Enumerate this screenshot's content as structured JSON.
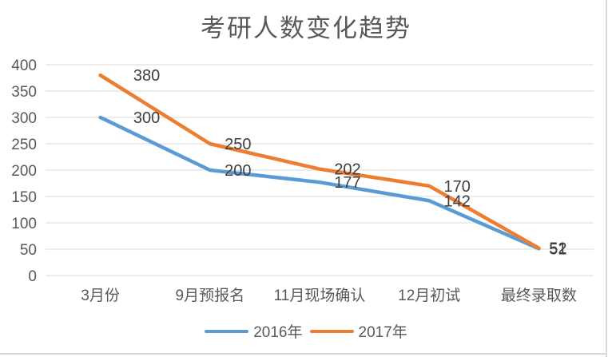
{
  "chart_data": {
    "type": "line",
    "title": "考研人数变化趋势",
    "categories": [
      "3月份",
      "9月预报名",
      "11月现场确认",
      "12月初试",
      "最终录取数"
    ],
    "series": [
      {
        "name": "2016年",
        "color": "#5B9BD5",
        "values": [
          300,
          200,
          177,
          142,
          51
        ]
      },
      {
        "name": "2017年",
        "color": "#ED7D31",
        "values": [
          380,
          250,
          202,
          170,
          52
        ]
      }
    ],
    "y_axis": {
      "min": 0,
      "max": 400,
      "step": 50,
      "ticks": [
        400,
        350,
        300,
        250,
        200,
        150,
        100,
        50,
        0
      ]
    },
    "xlabel": "",
    "ylabel": "",
    "grid": true,
    "data_labels": true,
    "legend_position": "bottom"
  },
  "colors": {
    "title_text": "#595959",
    "axis_text": "#595959",
    "data_label_text": "#404040",
    "gridline": "#D9D9D9",
    "border": "#D9D9D9",
    "background": "#FFFFFF"
  }
}
